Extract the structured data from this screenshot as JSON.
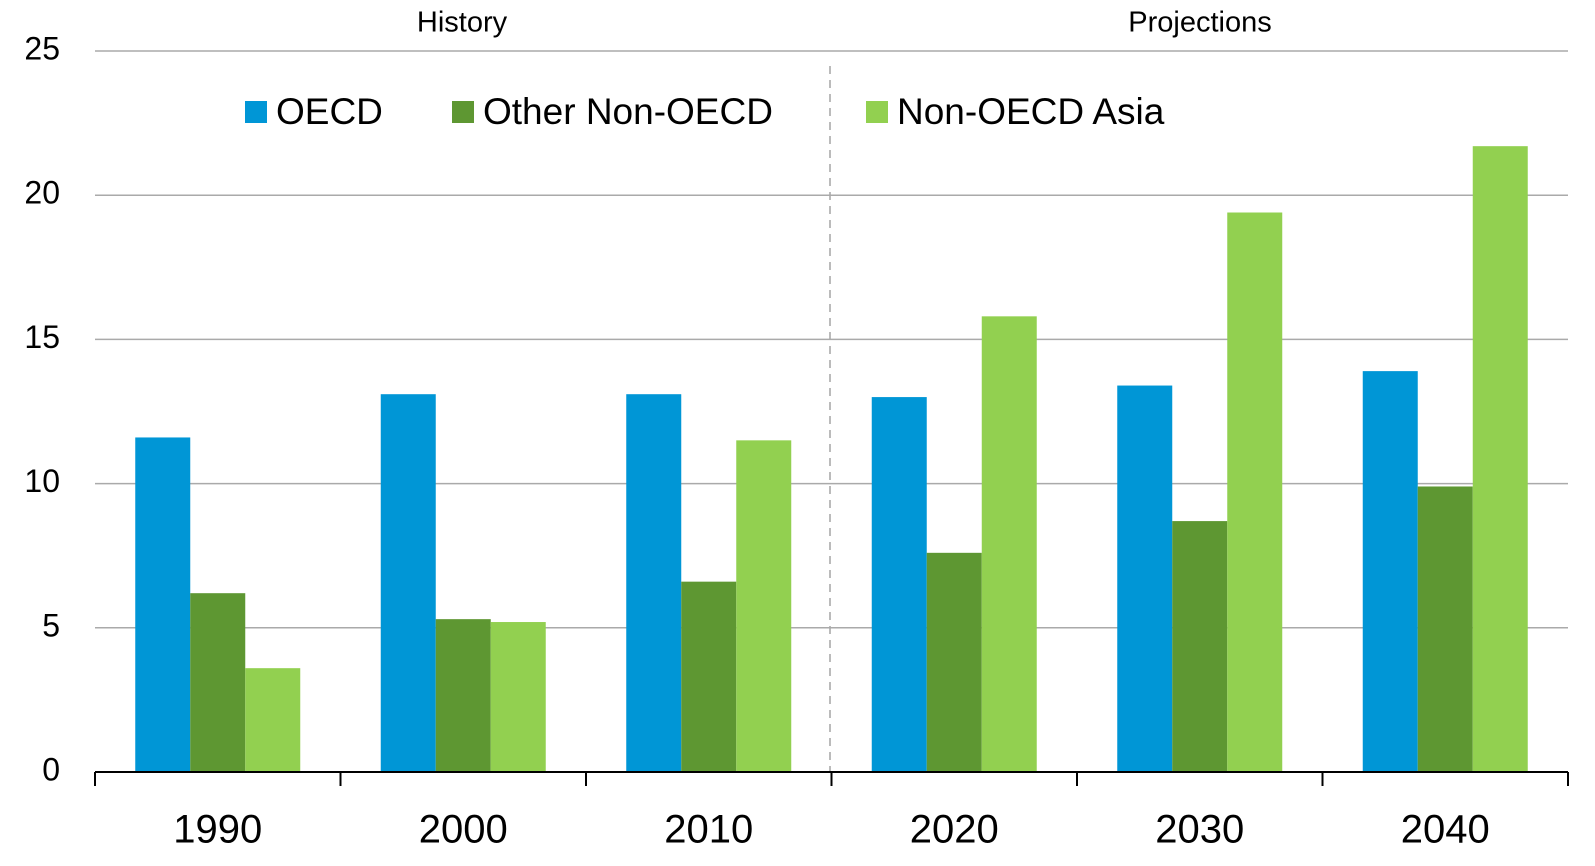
{
  "chart_data": {
    "type": "bar",
    "annotations": [
      "History",
      "Projections"
    ],
    "categories": [
      "1990",
      "2000",
      "2010",
      "2020",
      "2030",
      "2040"
    ],
    "series": [
      {
        "name": "OECD",
        "color": "#0096d6",
        "values": [
          11.6,
          13.1,
          13.1,
          13.0,
          13.4,
          13.9
        ]
      },
      {
        "name": "Other Non-OECD",
        "color": "#5e9732",
        "values": [
          6.2,
          5.3,
          6.6,
          7.6,
          8.7,
          9.9
        ]
      },
      {
        "name": "Non-OECD Asia",
        "color": "#92d050",
        "values": [
          3.6,
          5.2,
          11.5,
          15.8,
          19.4,
          21.7
        ]
      }
    ],
    "ylim": [
      0,
      25
    ],
    "yticks": [
      0,
      5,
      10,
      15,
      20,
      25
    ],
    "grid": true,
    "legend": "top"
  }
}
